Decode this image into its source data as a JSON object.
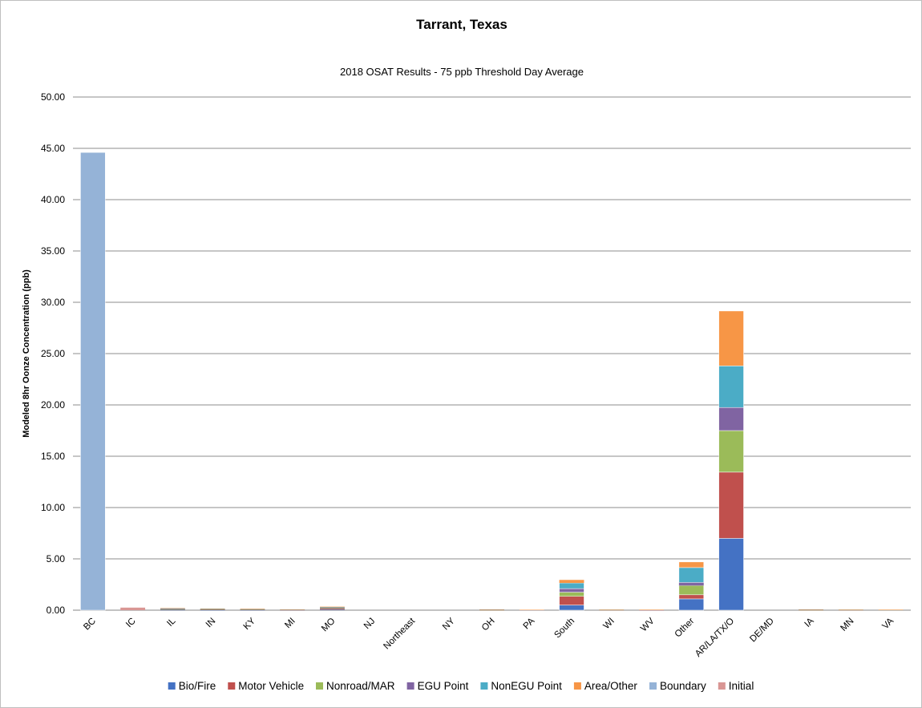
{
  "chart_data": {
    "type": "bar",
    "stacked": true,
    "title": "Tarrant, Texas",
    "subtitle": "2018 OSAT Results - 75 ppb Threshold Day Average",
    "xlabel": "",
    "ylabel": "Modeled 8hr Oonze Concentration (ppb)",
    "ylim": [
      0,
      50
    ],
    "yticks": [
      "0.00",
      "5.00",
      "10.00",
      "15.00",
      "20.00",
      "25.00",
      "30.00",
      "35.00",
      "40.00",
      "45.00",
      "50.00"
    ],
    "grid": true,
    "legend_position": "bottom",
    "categories": [
      "BC",
      "IC",
      "IL",
      "IN",
      "KY",
      "MI",
      "MO",
      "NJ",
      "Northeast",
      "NY",
      "OH",
      "PA",
      "South",
      "WI",
      "WV",
      "Other",
      "AR/LA/TX/O",
      "DE/MD",
      "IA",
      "MN",
      "VA"
    ],
    "series": [
      {
        "name": "Bio/Fire",
        "color": "#4472c4",
        "values": [
          0,
          0,
          0.02,
          0.02,
          0.02,
          0.01,
          0.06,
          0,
          0,
          0,
          0.01,
          0,
          0.5,
          0.01,
          0,
          1.1,
          7.0,
          0,
          0.01,
          0.01,
          0
        ]
      },
      {
        "name": "Motor Vehicle",
        "color": "#c0504d",
        "values": [
          0,
          0,
          0.04,
          0.03,
          0.02,
          0.02,
          0.08,
          0,
          0,
          0,
          0.01,
          0.01,
          0.85,
          0.01,
          0.01,
          0.4,
          6.45,
          0,
          0.01,
          0.01,
          0.01
        ]
      },
      {
        "name": "Nonroad/MAR",
        "color": "#9bbb59",
        "values": [
          0,
          0,
          0.03,
          0.02,
          0.02,
          0.01,
          0.05,
          0,
          0,
          0,
          0.01,
          0,
          0.4,
          0.01,
          0,
          0.9,
          4.05,
          0,
          0.01,
          0.01,
          0.01
        ]
      },
      {
        "name": "EGU Point",
        "color": "#8064a2",
        "values": [
          0,
          0,
          0.03,
          0.03,
          0.03,
          0.01,
          0.05,
          0,
          0,
          0,
          0.02,
          0.01,
          0.35,
          0.01,
          0.02,
          0.3,
          2.25,
          0,
          0.02,
          0.01,
          0.01
        ]
      },
      {
        "name": "NonEGU Point",
        "color": "#4bacc6",
        "values": [
          0,
          0,
          0.03,
          0.02,
          0.02,
          0.01,
          0.04,
          0,
          0,
          0,
          0.01,
          0.01,
          0.55,
          0.01,
          0.01,
          1.45,
          4.05,
          0,
          0.01,
          0.01,
          0.01
        ]
      },
      {
        "name": "Area/Other",
        "color": "#f79646",
        "values": [
          0,
          0,
          0.05,
          0.04,
          0.03,
          0.02,
          0.06,
          0,
          0,
          0,
          0.02,
          0.01,
          0.3,
          0.01,
          0.01,
          0.55,
          5.35,
          0,
          0.02,
          0.01,
          0.01
        ]
      },
      {
        "name": "Boundary",
        "color": "#95b3d7",
        "values": [
          44.6,
          0,
          0,
          0,
          0,
          0,
          0,
          0,
          0,
          0,
          0,
          0,
          0,
          0,
          0,
          0,
          0,
          0,
          0,
          0,
          0
        ]
      },
      {
        "name": "Initial",
        "color": "#d99694",
        "values": [
          0,
          0.25,
          0,
          0,
          0,
          0,
          0,
          0,
          0,
          0,
          0,
          0,
          0,
          0,
          0,
          0,
          0,
          0,
          0,
          0,
          0
        ]
      }
    ]
  }
}
